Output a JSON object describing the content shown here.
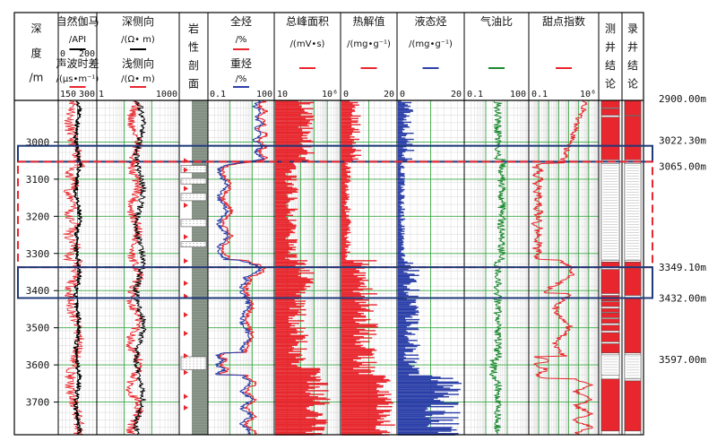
{
  "chart_data": {
    "type": "well-log",
    "depth_axis": {
      "label_chars": [
        "深",
        "度",
        "/m"
      ],
      "range": [
        2900,
        3800
      ],
      "ticks": [
        3000,
        3100,
        3200,
        3300,
        3400,
        3500,
        3600,
        3700
      ]
    },
    "tracks": [
      {
        "id": "gr",
        "lines": [
          {
            "name": "自然伽马",
            "unit": "/API",
            "min": "0",
            "max": "200",
            "color": "#000000"
          },
          {
            "name": "声波时差",
            "unit": "/(μs•m⁻¹)",
            "min": "150",
            "max": "300",
            "color": "#e8262d"
          }
        ]
      },
      {
        "id": "res",
        "lines": [
          {
            "name": "深侧向",
            "unit": "/(Ω• m)",
            "color": "#000000"
          },
          {
            "name": "浅侧向",
            "unit": "/(Ω• m)",
            "min": "1",
            "max": "1000",
            "color": "#e8262d"
          }
        ]
      },
      {
        "id": "lith",
        "title_chars": [
          "岩",
          "性",
          "剖",
          "面"
        ]
      },
      {
        "id": "gas",
        "lines": [
          {
            "name": "全烃",
            "unit": "/%",
            "color": "#e8262d"
          },
          {
            "name": "重烃",
            "unit": "/%",
            "min": "0.1",
            "max": "100",
            "color": "#2b3fa8"
          }
        ]
      },
      {
        "id": "peak",
        "name": "总峰面积",
        "unit": "/(mV•s)",
        "min": "10",
        "max": "10⁶",
        "color": "#e8262d"
      },
      {
        "id": "pyro",
        "name": "热解值",
        "unit": "/(mg•g⁻¹)",
        "min": "0",
        "max": "20",
        "color": "#e8262d"
      },
      {
        "id": "liq",
        "name": "液态烃",
        "unit": "/(mg•g⁻¹)",
        "min": "0",
        "max": "20",
        "color": "#2b3fa8"
      },
      {
        "id": "gor",
        "name": "气油比",
        "min": "0.1",
        "max": "100",
        "color": "#1a8a2e"
      },
      {
        "id": "sweet",
        "name": "甜点指数",
        "min": "0.1",
        "max": "10⁶",
        "color": "#e8262d"
      },
      {
        "id": "logc",
        "title_chars": [
          "测",
          "井",
          "结",
          "论"
        ]
      },
      {
        "id": "mudc",
        "title_chars": [
          "录",
          "井",
          "结",
          "论"
        ]
      }
    ],
    "zones": [
      {
        "type": "box",
        "style": "solid-blue",
        "top": 3022.3,
        "bottom": 3065.0
      },
      {
        "type": "box",
        "style": "dashed-red",
        "top": 3065.0,
        "bottom": 3349.1
      },
      {
        "type": "box",
        "style": "solid-blue",
        "top": 3349.1,
        "bottom": 3432.0
      }
    ],
    "right_depth_labels": [
      "2900.00m",
      "3022.30m",
      "3065.00m",
      "3349.10m",
      "3432.00m",
      "3597.00m"
    ],
    "right_depth_values": [
      2900.0,
      3022.3,
      3065.0,
      3349.1,
      3432.0,
      3597.0
    ],
    "grid": true
  }
}
